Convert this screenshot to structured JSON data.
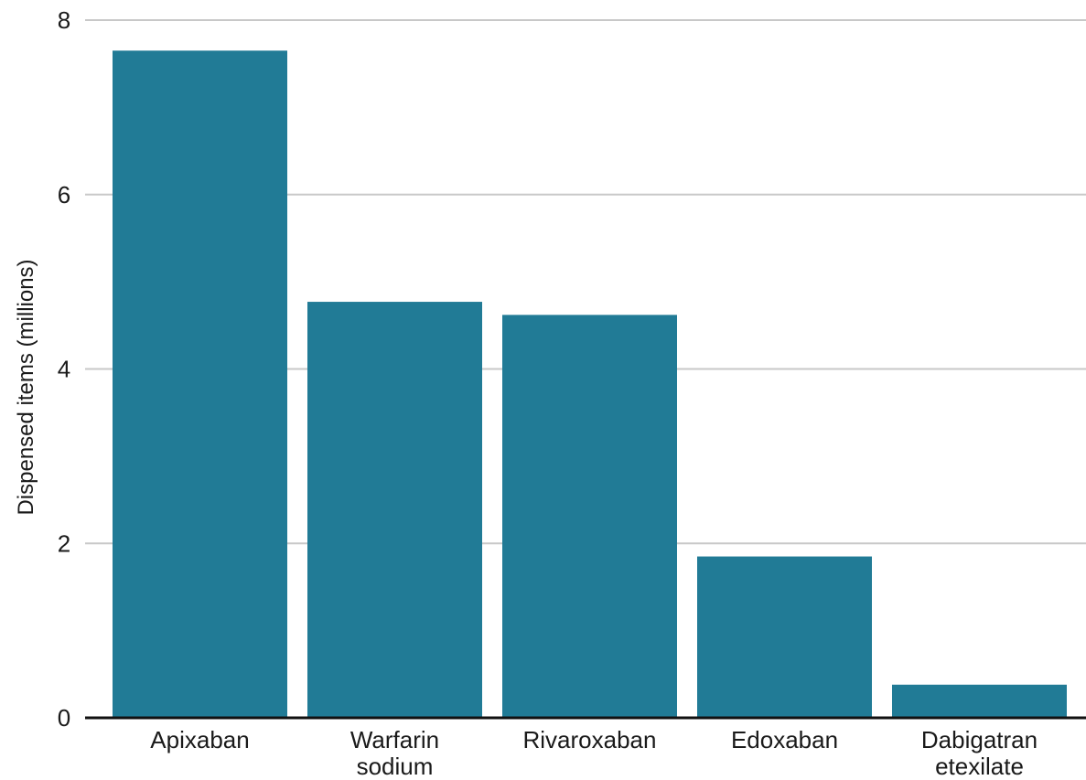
{
  "chart_data": {
    "type": "bar",
    "title": "",
    "xlabel": "",
    "ylabel": "Dispensed items (millions)",
    "categories": [
      [
        "Apixaban"
      ],
      [
        "Warfarin",
        "sodium"
      ],
      [
        "Rivaroxaban"
      ],
      [
        "Edoxaban"
      ],
      [
        "Dabigatran",
        "etexilate"
      ]
    ],
    "values": [
      7.65,
      4.77,
      4.62,
      1.85,
      0.38
    ],
    "ylim": [
      0,
      8
    ],
    "yticks": [
      0,
      2,
      4,
      6,
      8
    ],
    "grid": true,
    "bar_color": "#217b96"
  }
}
